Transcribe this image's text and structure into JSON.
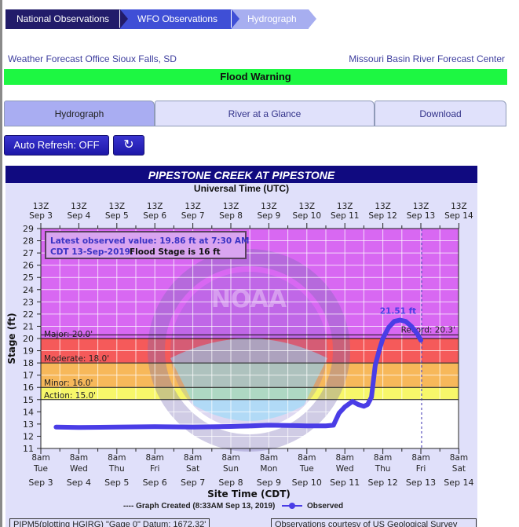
{
  "breadcrumbs": [
    {
      "label": "National Observations"
    },
    {
      "label": "WFO Observations"
    },
    {
      "label": "Hydrograph"
    }
  ],
  "office": {
    "left": "Weather Forecast Office Sioux Falls, SD",
    "right": "Missouri Basin River Forecast Center"
  },
  "warning": {
    "label": "Flood Warning",
    "color": "#1df742"
  },
  "tabs": [
    {
      "label": "Hydrograph",
      "active": true
    },
    {
      "label": "River at a Glance",
      "active": false
    },
    {
      "label": "Download",
      "active": false
    }
  ],
  "controls": {
    "auto_refresh_label": "Auto Refresh: OFF",
    "refresh_icon": "↻"
  },
  "chart": {
    "title": "PIPESTONE CREEK AT PIPESTONE",
    "top_axis_label": "Universal Time (UTC)",
    "latest_line1": "Latest observed value: 19.86 ft at 7:30 AM",
    "latest_line2_a": "CDT 13-Sep-2019.",
    "latest_line2_b": "Flood Stage is 16 ft",
    "peak_label": "21.51 ft",
    "legend_created": "---- Graph Created (8:33AM Sep 13, 2019)",
    "legend_observed": "Observed",
    "footer_left": "PIPM5(plotting HGIRG) \"Gage 0\" Datum: 1672.32'",
    "footer_right": "Observations courtesy of US Geological Survey"
  },
  "chart_data": {
    "type": "line",
    "title": "PIPESTONE CREEK AT PIPESTONE",
    "xlabel": "Site Time (CDT)",
    "xlabel_top": "Universal Time (UTC)",
    "ylabel": "Stage (ft)",
    "ylim": [
      11,
      29
    ],
    "yticks": [
      11,
      12,
      13,
      14,
      15,
      16,
      17,
      18,
      19,
      20,
      21,
      22,
      23,
      24,
      25,
      26,
      27,
      28,
      29
    ],
    "x_top_ticks": [
      "13Z Sep 3",
      "13Z Sep 4",
      "13Z Sep 5",
      "13Z Sep 6",
      "13Z Sep 7",
      "13Z Sep 8",
      "13Z Sep 9",
      "13Z Sep 10",
      "13Z Sep 11",
      "13Z Sep 12",
      "13Z Sep 13",
      "13Z Sep 14"
    ],
    "x_bottom_ticks": [
      {
        "time": "8am",
        "day": "Tue",
        "date": "Sep 3"
      },
      {
        "time": "8am",
        "day": "Wed",
        "date": "Sep 4"
      },
      {
        "time": "8am",
        "day": "Thu",
        "date": "Sep 5"
      },
      {
        "time": "8am",
        "day": "Fri",
        "date": "Sep 6"
      },
      {
        "time": "8am",
        "day": "Sat",
        "date": "Sep 7"
      },
      {
        "time": "8am",
        "day": "Sun",
        "date": "Sep 8"
      },
      {
        "time": "8am",
        "day": "Mon",
        "date": "Sep 9"
      },
      {
        "time": "8am",
        "day": "Tue",
        "date": "Sep 10"
      },
      {
        "time": "8am",
        "day": "Wed",
        "date": "Sep 11"
      },
      {
        "time": "8am",
        "day": "Thu",
        "date": "Sep 12"
      },
      {
        "time": "8am",
        "day": "Fri",
        "date": "Sep 13"
      },
      {
        "time": "8am",
        "day": "Sat",
        "date": "Sep 14"
      }
    ],
    "grid": true,
    "flood_categories": [
      {
        "name": "Action",
        "stage": 15.0,
        "label": "Action: 15.0'",
        "color": "#f7f76a"
      },
      {
        "name": "Minor",
        "stage": 16.0,
        "label": "Minor: 16.0'",
        "color": "#f7b85a"
      },
      {
        "name": "Moderate",
        "stage": 18.0,
        "label": "Moderate: 18.0'",
        "color": "#f55a5a"
      },
      {
        "name": "Major",
        "stage": 20.0,
        "label": "Major: 20.0'",
        "color": "#d868f2"
      }
    ],
    "record": {
      "stage": 20.3,
      "label": "Record: 20.3'"
    },
    "flood_stage": 16,
    "peak": {
      "value": 21.51,
      "label": "21.51 ft"
    },
    "latest": {
      "value": 19.86,
      "time": "7:30 AM CDT 13-Sep-2019"
    },
    "graph_created": "8:33AM Sep 13, 2019",
    "series": [
      {
        "name": "Observed",
        "color": "#4a3de6",
        "x_days_since_sep3_8am": [
          0.4,
          1.0,
          2.0,
          3.0,
          4.0,
          5.0,
          5.5,
          6.0,
          7.0,
          7.5,
          7.7,
          7.85,
          8.0,
          8.2,
          8.35,
          8.5,
          8.6,
          8.7,
          8.75,
          8.8,
          8.9,
          9.0,
          9.15,
          9.3,
          9.45,
          9.6,
          9.75,
          9.9,
          10.0
        ],
        "values": [
          12.75,
          12.72,
          12.75,
          12.78,
          12.75,
          12.8,
          12.85,
          12.9,
          12.85,
          12.85,
          12.9,
          13.9,
          14.4,
          14.85,
          14.6,
          14.45,
          14.6,
          15.2,
          16.5,
          17.8,
          19.0,
          20.0,
          20.9,
          21.4,
          21.51,
          21.4,
          21.0,
          20.4,
          19.86
        ]
      }
    ],
    "legend": [
      "Graph Created (8:33AM Sep 13, 2019)",
      "Observed"
    ]
  }
}
